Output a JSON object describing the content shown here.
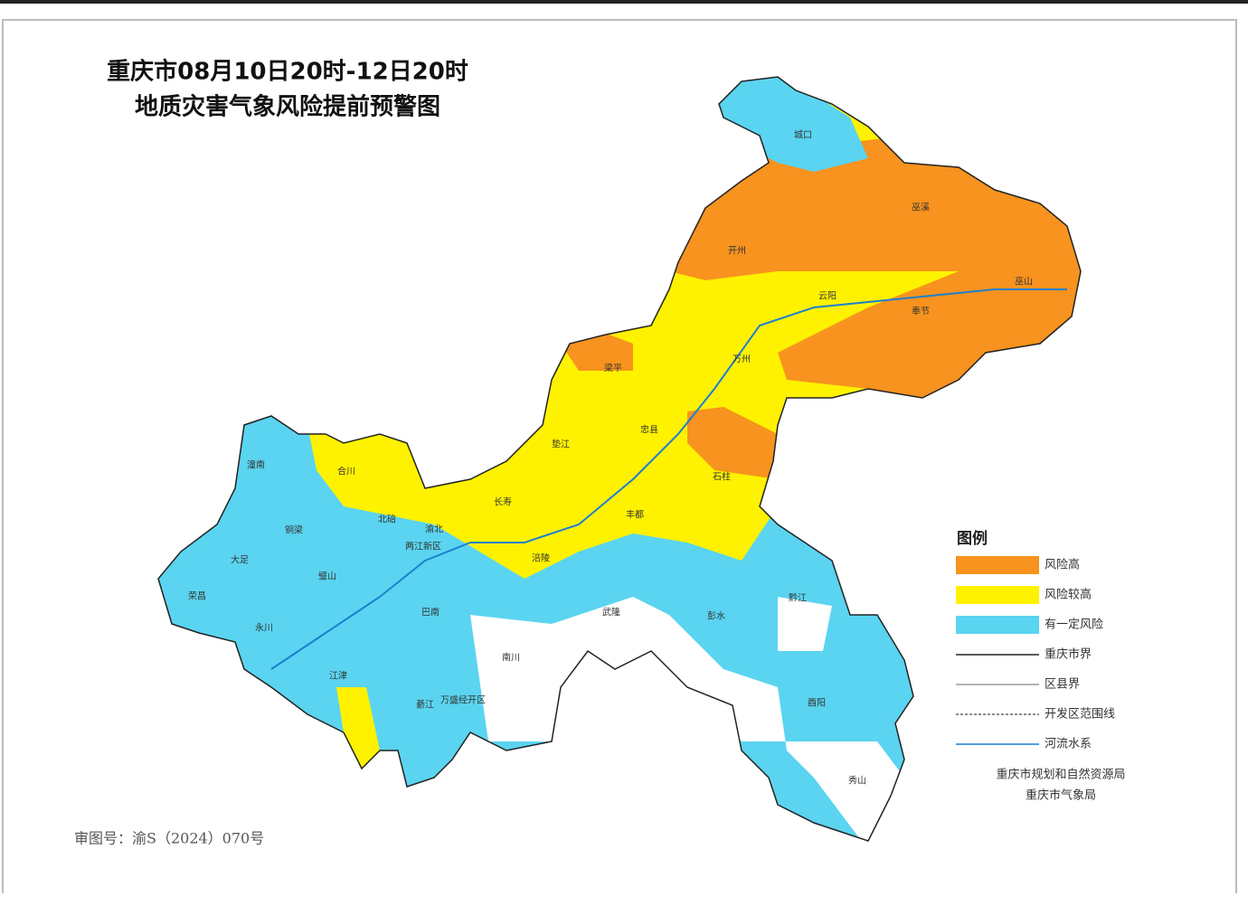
{
  "title": [
    "重庆市08月10日20时-12日20时",
    "地质灾害气象风险提前预警图"
  ],
  "legend": {
    "title": "图例",
    "areas": [
      {
        "label": "风险高",
        "color": "#f7931e"
      },
      {
        "label": "风险较高",
        "color": "#fff200"
      },
      {
        "label": "有一定风险",
        "color": "#5ad4f0"
      }
    ],
    "lines": [
      {
        "label": "重庆市界",
        "color": "#222222",
        "style": "solid"
      },
      {
        "label": "区县界",
        "color": "#999999",
        "style": "solid"
      },
      {
        "label": "开发区范围线",
        "color": "#666666",
        "style": "dashed"
      },
      {
        "label": "河流水系",
        "color": "#1e7fd0",
        "style": "solid"
      }
    ]
  },
  "credits": [
    "重庆市规划和自然资源局",
    "重庆市气象局"
  ],
  "review_number": "审图号：渝S（2024）070号",
  "districts": [
    "城口",
    "巫溪",
    "开州",
    "云阳",
    "奉节",
    "巫山",
    "万州",
    "梁平",
    "忠县",
    "垫江",
    "石柱",
    "长寿",
    "丰都",
    "涪陵",
    "武隆",
    "彭水",
    "黔江",
    "酉阳",
    "秀山",
    "南川",
    "綦江",
    "江津",
    "永川",
    "荣昌",
    "大足",
    "铜梁",
    "潼南",
    "合川",
    "璧山",
    "北碚",
    "渝北",
    "巴南",
    "两江新区",
    "万盛经开区"
  ]
}
